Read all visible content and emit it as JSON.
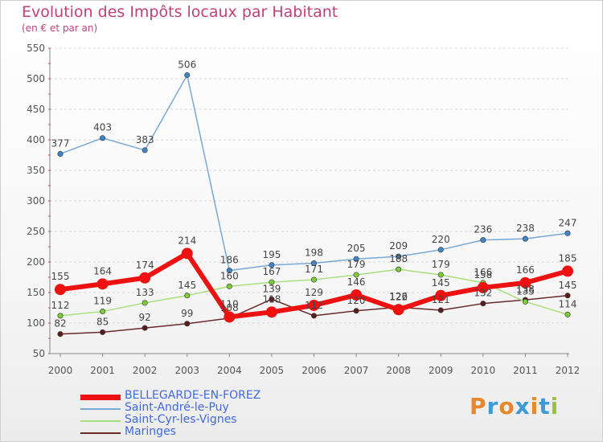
{
  "header": {
    "title": "Evolution des Impôts locaux par Habitant",
    "subtitle": "(en € et par an)"
  },
  "logo": {
    "text": "Proxiti",
    "letters": [
      {
        "char": "P",
        "color": "#e8862a"
      },
      {
        "char": "r",
        "color": "#3c9ad6"
      },
      {
        "char": "o",
        "color": "#e8862a"
      },
      {
        "char": "x",
        "color": "#3c9ad6"
      },
      {
        "char": "i",
        "color": "#e8862a"
      },
      {
        "char": "t",
        "color": "#3c9ad6"
      },
      {
        "char": "i",
        "color": "#9ac23c"
      }
    ]
  },
  "chart_data": {
    "type": "line",
    "title": "Evolution des Impôts locaux par Habitant",
    "subtitle": "(en € et par an)",
    "xlabel": "",
    "ylabel": "",
    "ylim": [
      50,
      550
    ],
    "yticks": [
      50,
      100,
      150,
      200,
      250,
      300,
      350,
      400,
      450,
      500,
      550
    ],
    "categories": [
      "2000",
      "2001",
      "2002",
      "2003",
      "2004",
      "2005",
      "2006",
      "2007",
      "2008",
      "2009",
      "2010",
      "2011",
      "2012"
    ],
    "grid": "horizontal",
    "legend_position": "bottom-left",
    "series": [
      {
        "name": "Maringes",
        "color": "#6b2a2a",
        "marker": "#5a1d1d",
        "values": [
          82,
          85,
          92,
          99,
          108,
          139,
          112,
          120,
          126,
          121,
          132,
          138,
          145
        ]
      },
      {
        "name": "Saint-Cyr-les-Vignes",
        "color": "#a8df7f",
        "marker": "#7ccd3a",
        "values": [
          112,
          119,
          133,
          145,
          160,
          167,
          171,
          179,
          188,
          179,
          166,
          135,
          114
        ]
      },
      {
        "name": "Saint-André-le-Puy",
        "color": "#78a9d6",
        "marker": "#3f86c6",
        "values": [
          377,
          403,
          383,
          506,
          186,
          195,
          198,
          205,
          209,
          220,
          236,
          238,
          247
        ]
      },
      {
        "name": "BELLEGARDE-EN-FOREZ",
        "color": "#ee1111",
        "marker": "#ee1111",
        "values": [
          155,
          164,
          174,
          214,
          110,
          118,
          129,
          146,
          122,
          145,
          158,
          166,
          185
        ]
      }
    ]
  }
}
